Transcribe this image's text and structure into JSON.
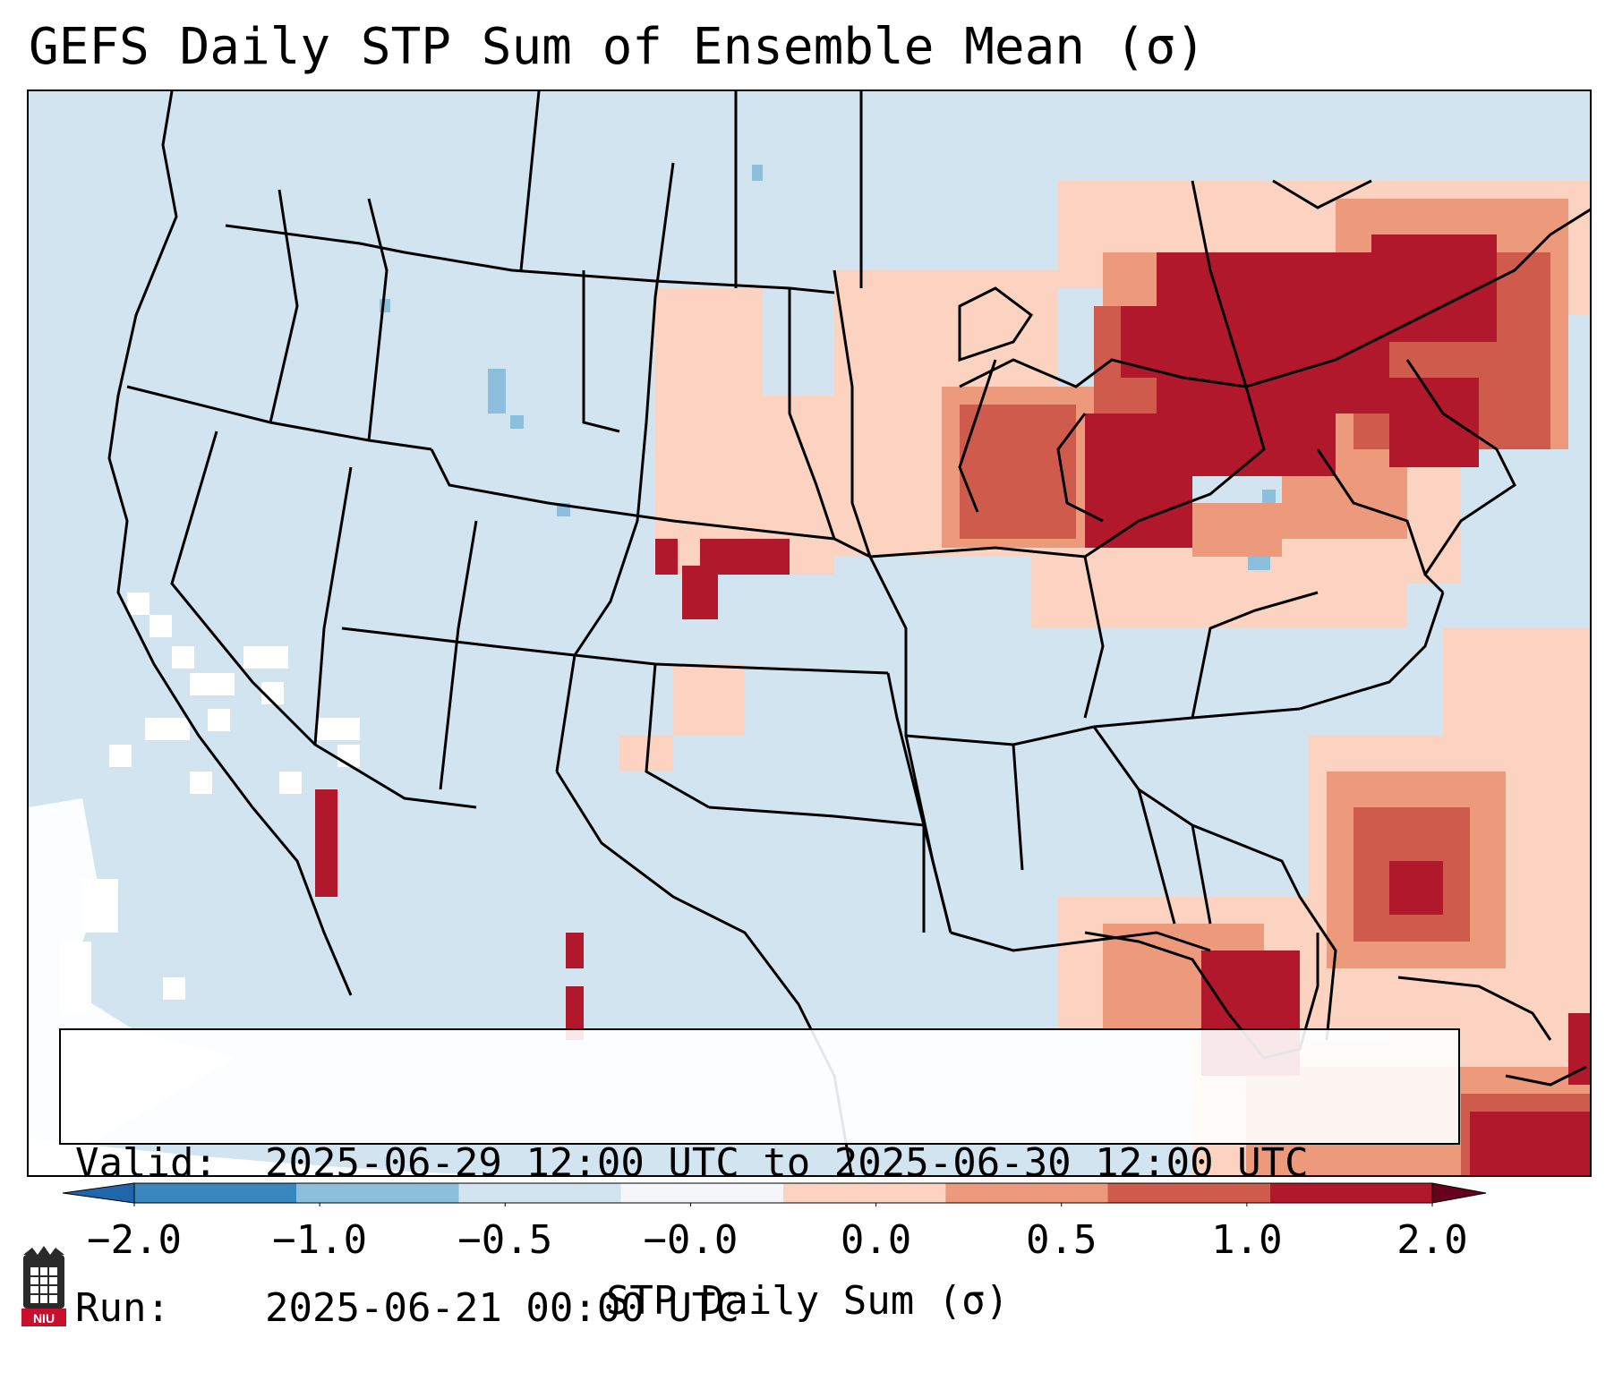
{
  "title": "GEFS Daily STP Sum of Ensemble Mean (σ)",
  "info": {
    "valid_label": "Valid:",
    "valid_value": "2025-06-29 12:00 UTC to 2025-06-30 12:00 UTC",
    "run_label": "Run:",
    "run_value": "2025-06-21 00:00 UTC"
  },
  "colorbar": {
    "label": "STP Daily Sum (σ)",
    "ticks": [
      "−2.0",
      "−1.0",
      "−0.5",
      "−0.0",
      "0.0",
      "0.5",
      "1.0",
      "2.0"
    ],
    "colors": [
      "#3a87bf",
      "#8cbfdc",
      "#d1e4ef",
      "#f4f6f9",
      "#fbd3c0",
      "#ec9a7b",
      "#cf5b4d",
      "#b2182b"
    ],
    "extend": "both"
  },
  "colors": {
    "ocean_land": "#d1e4ef",
    "light_pos": "#fbd3c0",
    "mid_pos": "#ec9a7b",
    "strong_pos": "#cf5b4d",
    "max_pos": "#b2182b",
    "neutral": "#ffffff",
    "light_neg": "#8cbfdc"
  },
  "map_data": {
    "domain": "CONUS",
    "variable": "STP daily sum anomaly",
    "notable_regions": [
      {
        "region": "Great Lakes / Ontario / Quebec",
        "level": "2.0"
      },
      {
        "region": "Upper Midwest / Wisconsin",
        "level": "1.0"
      },
      {
        "region": "Southeast Coast / Atlantic",
        "level": "1.0"
      },
      {
        "region": "Florida",
        "level": "2.0"
      },
      {
        "region": "Kansas / Colorado",
        "level": "2.0"
      },
      {
        "region": "Eastern Pacific off Baja",
        "level": "-0.0"
      }
    ]
  },
  "logo": {
    "text": "NIU"
  }
}
